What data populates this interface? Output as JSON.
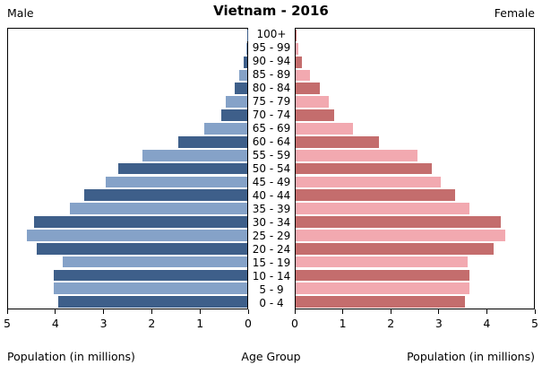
{
  "header": {
    "title": "Vietnam - 2016",
    "left_label": "Male",
    "right_label": "Female"
  },
  "footer": {
    "left_axis_title": "Population (in millions)",
    "center_axis_title": "Age Group",
    "right_axis_title": "Population (in millions)"
  },
  "colors": {
    "male_dark": "#3E5F8A",
    "male_light": "#85A2C8",
    "female_dark": "#C46D6D",
    "female_light": "#F2A9B0",
    "border": "#000000",
    "background": "#FFFFFF"
  },
  "chart_data": {
    "type": "bar",
    "subtype": "population-pyramid",
    "title": "Vietnam - 2016",
    "orientation": "horizontal",
    "grid": false,
    "legend": "none",
    "categories_top_to_bottom": [
      "100+",
      "95 - 99",
      "90 - 94",
      "85 - 89",
      "80 - 84",
      "75 - 79",
      "70 - 74",
      "65 - 69",
      "60 - 64",
      "55 - 59",
      "50 - 54",
      "45 - 49",
      "40 - 44",
      "35 - 39",
      "30 - 34",
      "25 - 29",
      "20 - 24",
      "15 - 19",
      "10 - 14",
      "5 - 9",
      "0 - 4"
    ],
    "series": [
      {
        "name": "Male",
        "side": "left",
        "values_top_to_bottom": [
          0.005,
          0.02,
          0.08,
          0.16,
          0.26,
          0.45,
          0.55,
          0.9,
          1.45,
          2.2,
          2.7,
          2.95,
          3.4,
          3.7,
          4.45,
          4.6,
          4.4,
          3.85,
          4.05,
          4.05,
          3.95
        ]
      },
      {
        "name": "Female",
        "side": "right",
        "values_top_to_bottom": [
          0.01,
          0.05,
          0.14,
          0.3,
          0.5,
          0.7,
          0.8,
          1.2,
          1.75,
          2.55,
          2.85,
          3.05,
          3.35,
          3.65,
          4.3,
          4.4,
          4.15,
          3.6,
          3.65,
          3.65,
          3.55
        ]
      }
    ],
    "x_axis": {
      "title": "Population (in millions)",
      "max": 5,
      "left_ticks_display_order": [
        5,
        4,
        3,
        2,
        1,
        0
      ],
      "right_ticks_display_order": [
        0,
        1,
        2,
        3,
        4,
        5
      ]
    },
    "y_axis": {
      "title": "Age Group"
    }
  }
}
